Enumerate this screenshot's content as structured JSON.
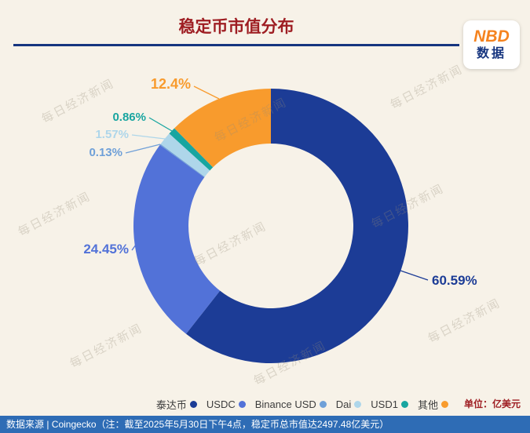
{
  "header": {
    "title": "稳定币市值分布",
    "logo": {
      "line1": "NBD",
      "line2": "数据"
    }
  },
  "watermark": {
    "text": "每日经济新闻"
  },
  "chart_data": {
    "type": "pie",
    "donut": true,
    "title": "稳定币市值分布",
    "unit": "亿美元",
    "total_market_cap": "2497.48亿美元",
    "legend_position": "bottom",
    "slices": [
      {
        "name": "泰达币",
        "percent": 60.59,
        "label": "60.59%",
        "color": "#1c3c96"
      },
      {
        "name": "USDC",
        "percent": 24.45,
        "label": "24.45%",
        "color": "#5272d8"
      },
      {
        "name": "Binance USD",
        "percent": 0.13,
        "label": "0.13%",
        "color": "#6fa0d8"
      },
      {
        "name": "Dai",
        "percent": 1.57,
        "label": "1.57%",
        "color": "#aed6ea"
      },
      {
        "name": "USD1",
        "percent": 0.86,
        "label": "0.86%",
        "color": "#18a5a0"
      },
      {
        "name": "其他",
        "percent": 12.4,
        "label": "12.4%",
        "color": "#f89b2d"
      }
    ]
  },
  "footer": {
    "unit": "单位：亿美元",
    "source_bar": "数据来源 | Coingecko（注：截至2025年5月30日下午4点，稳定币总市值达2497.48亿美元）"
  }
}
